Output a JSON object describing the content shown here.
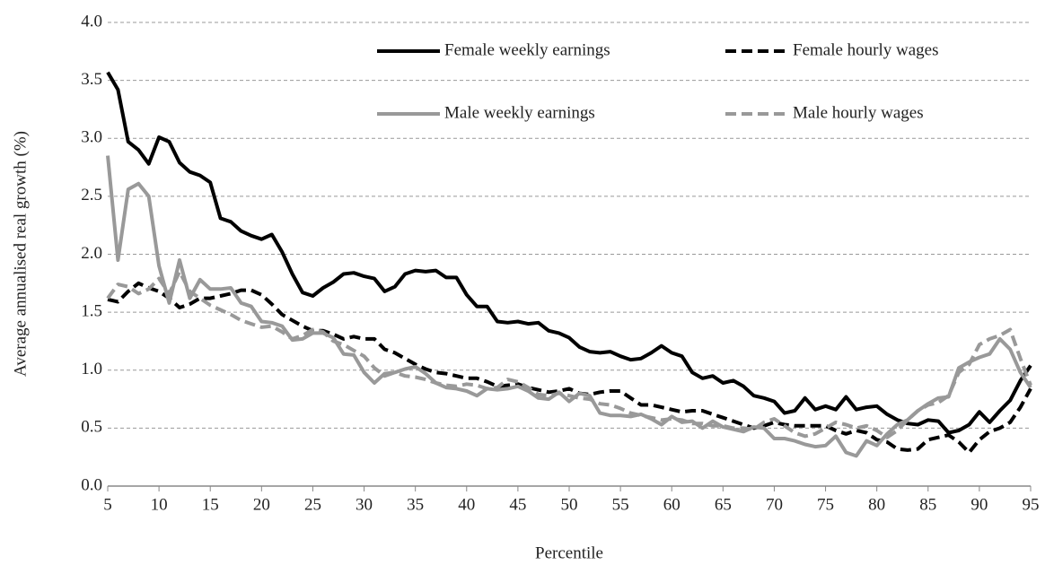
{
  "chart_data": {
    "type": "line",
    "y_label": "Average annualised real growth (%)",
    "x_label": "Percentile",
    "x": [
      5,
      6,
      7,
      8,
      9,
      10,
      11,
      12,
      13,
      14,
      15,
      16,
      17,
      18,
      19,
      20,
      21,
      22,
      23,
      24,
      25,
      26,
      27,
      28,
      29,
      30,
      31,
      32,
      33,
      34,
      35,
      36,
      37,
      38,
      39,
      40,
      41,
      42,
      43,
      44,
      45,
      46,
      47,
      48,
      49,
      50,
      51,
      52,
      53,
      54,
      55,
      56,
      57,
      58,
      59,
      60,
      61,
      62,
      63,
      64,
      65,
      66,
      67,
      68,
      69,
      70,
      71,
      72,
      73,
      74,
      75,
      76,
      77,
      78,
      79,
      80,
      81,
      82,
      83,
      84,
      85,
      86,
      87,
      88,
      89,
      90,
      91,
      92,
      93,
      94,
      95
    ],
    "xlim": [
      5,
      95
    ],
    "xticks": [
      5,
      10,
      15,
      20,
      25,
      30,
      35,
      40,
      45,
      50,
      55,
      60,
      65,
      70,
      75,
      80,
      85,
      90,
      95
    ],
    "ylim": [
      0,
      4
    ],
    "yticks": [
      {
        "value": 0,
        "label": "0.0"
      },
      0.5,
      {
        "value": 1,
        "label": "1.0"
      },
      1.5,
      {
        "value": 2,
        "label": "2.0"
      },
      2.5,
      {
        "value": 3,
        "label": "3.0"
      },
      3.5,
      {
        "value": 4,
        "label": "4.0"
      }
    ],
    "grid": true,
    "legend": "upper right",
    "series": [
      {
        "name": "Female weekly earnings",
        "color": "#000000",
        "style": "solid",
        "values": [
          3.57,
          3.42,
          2.97,
          2.9,
          2.78,
          3.01,
          2.97,
          2.79,
          2.71,
          2.68,
          2.62,
          2.31,
          2.28,
          2.2,
          2.16,
          2.13,
          2.17,
          2.02,
          1.83,
          1.67,
          1.64,
          1.71,
          1.76,
          1.83,
          1.84,
          1.81,
          1.79,
          1.68,
          1.72,
          1.83,
          1.86,
          1.85,
          1.86,
          1.8,
          1.8,
          1.65,
          1.55,
          1.55,
          1.42,
          1.41,
          1.42,
          1.4,
          1.41,
          1.34,
          1.32,
          1.28,
          1.2,
          1.16,
          1.15,
          1.16,
          1.12,
          1.09,
          1.1,
          1.15,
          1.21,
          1.15,
          1.12,
          0.98,
          0.93,
          0.95,
          0.89,
          0.91,
          0.86,
          0.78,
          0.76,
          0.73,
          0.63,
          0.65,
          0.76,
          0.66,
          0.69,
          0.66,
          0.77,
          0.66,
          0.68,
          0.69,
          0.62,
          0.57,
          0.54,
          0.53,
          0.57,
          0.56,
          0.46,
          0.48,
          0.53,
          0.64,
          0.55,
          0.65,
          0.74,
          0.91,
          1.04
        ]
      },
      {
        "name": "Female hourly wages",
        "color": "#000000",
        "style": "dashed",
        "values": [
          1.61,
          1.59,
          1.68,
          1.75,
          1.71,
          1.68,
          1.62,
          1.54,
          1.57,
          1.62,
          1.62,
          1.64,
          1.66,
          1.69,
          1.69,
          1.65,
          1.57,
          1.48,
          1.43,
          1.38,
          1.34,
          1.34,
          1.31,
          1.27,
          1.29,
          1.27,
          1.27,
          1.18,
          1.15,
          1.1,
          1.05,
          1.01,
          0.98,
          0.97,
          0.95,
          0.93,
          0.93,
          0.9,
          0.86,
          0.87,
          0.88,
          0.85,
          0.83,
          0.81,
          0.82,
          0.84,
          0.8,
          0.79,
          0.81,
          0.82,
          0.82,
          0.76,
          0.7,
          0.7,
          0.68,
          0.66,
          0.64,
          0.65,
          0.65,
          0.62,
          0.59,
          0.56,
          0.53,
          0.5,
          0.52,
          0.55,
          0.53,
          0.52,
          0.52,
          0.52,
          0.52,
          0.48,
          0.45,
          0.48,
          0.46,
          0.4,
          0.38,
          0.32,
          0.31,
          0.32,
          0.4,
          0.42,
          0.44,
          0.38,
          0.29,
          0.4,
          0.47,
          0.5,
          0.55,
          0.68,
          0.84
        ]
      },
      {
        "name": "Male weekly earnings",
        "color": "#999999",
        "style": "solid",
        "values": [
          2.85,
          1.95,
          2.56,
          2.61,
          2.5,
          1.9,
          1.58,
          1.95,
          1.62,
          1.78,
          1.7,
          1.7,
          1.71,
          1.58,
          1.55,
          1.42,
          1.41,
          1.38,
          1.26,
          1.27,
          1.32,
          1.32,
          1.28,
          1.14,
          1.13,
          0.98,
          0.89,
          0.97,
          0.98,
          1.01,
          1.03,
          0.97,
          0.89,
          0.85,
          0.84,
          0.82,
          0.78,
          0.84,
          0.83,
          0.84,
          0.86,
          0.82,
          0.76,
          0.75,
          0.81,
          0.73,
          0.8,
          0.78,
          0.63,
          0.61,
          0.61,
          0.6,
          0.62,
          0.58,
          0.53,
          0.6,
          0.55,
          0.56,
          0.5,
          0.56,
          0.51,
          0.49,
          0.47,
          0.51,
          0.5,
          0.41,
          0.41,
          0.39,
          0.36,
          0.34,
          0.35,
          0.43,
          0.29,
          0.26,
          0.39,
          0.35,
          0.45,
          0.53,
          0.57,
          0.65,
          0.71,
          0.76,
          0.77,
          1.02,
          1.07,
          1.11,
          1.14,
          1.27,
          1.18,
          0.98,
          0.85
        ]
      },
      {
        "name": "Male hourly wages",
        "color": "#999999",
        "style": "dashed",
        "values": [
          1.62,
          1.74,
          1.72,
          1.66,
          1.7,
          1.79,
          1.66,
          1.85,
          1.68,
          1.62,
          1.56,
          1.52,
          1.48,
          1.43,
          1.4,
          1.37,
          1.38,
          1.33,
          1.27,
          1.3,
          1.35,
          1.33,
          1.25,
          1.22,
          1.17,
          1.12,
          1.02,
          0.95,
          0.98,
          0.95,
          0.94,
          0.92,
          0.89,
          0.87,
          0.86,
          0.88,
          0.87,
          0.84,
          0.85,
          0.92,
          0.9,
          0.85,
          0.79,
          0.78,
          0.8,
          0.78,
          0.76,
          0.75,
          0.71,
          0.7,
          0.67,
          0.63,
          0.61,
          0.59,
          0.57,
          0.58,
          0.57,
          0.54,
          0.54,
          0.52,
          0.52,
          0.5,
          0.5,
          0.49,
          0.55,
          0.58,
          0.52,
          0.46,
          0.43,
          0.45,
          0.5,
          0.55,
          0.53,
          0.5,
          0.52,
          0.48,
          0.42,
          0.48,
          0.57,
          0.65,
          0.7,
          0.72,
          0.78,
          0.98,
          1.05,
          1.22,
          1.27,
          1.3,
          1.35,
          1.1,
          0.87
        ]
      }
    ]
  }
}
